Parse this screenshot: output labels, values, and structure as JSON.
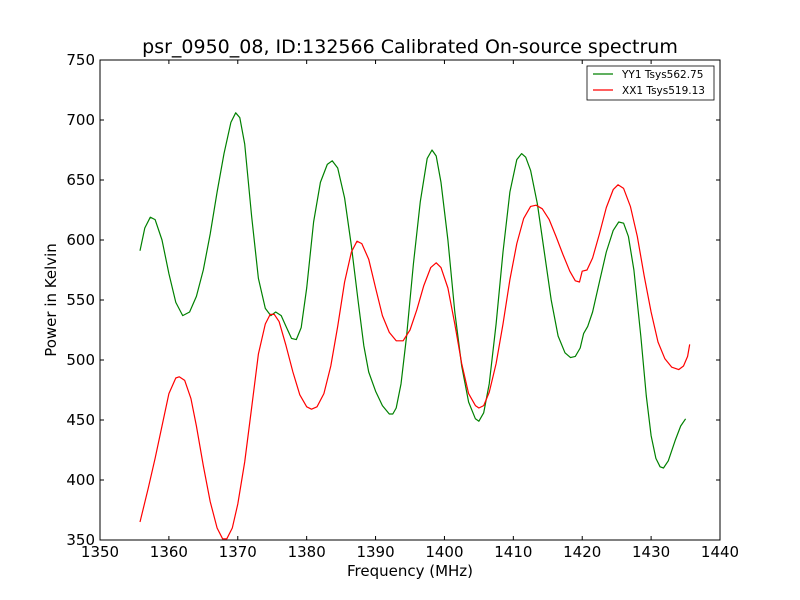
{
  "chart_data": {
    "type": "line",
    "title": "psr_0950_08, ID:132566 Calibrated On-source spectrum",
    "xlabel": "Frequency (MHz)",
    "ylabel": "Power in Kelvin",
    "xlim": [
      1350,
      1440
    ],
    "ylim": [
      350,
      750
    ],
    "xticks": [
      1350,
      1360,
      1370,
      1380,
      1390,
      1400,
      1410,
      1420,
      1430,
      1440
    ],
    "yticks": [
      350,
      400,
      450,
      500,
      550,
      600,
      650,
      700,
      750
    ],
    "grid": false,
    "legend_position": "top-right",
    "series": [
      {
        "name": "YY1 Tsys562.75",
        "color": "#008000",
        "points": [
          [
            1355.8,
            591
          ],
          [
            1356.5,
            610
          ],
          [
            1357.3,
            619
          ],
          [
            1358,
            617
          ],
          [
            1359,
            600
          ],
          [
            1360,
            572
          ],
          [
            1361,
            548
          ],
          [
            1362,
            537
          ],
          [
            1363,
            540
          ],
          [
            1364,
            553
          ],
          [
            1365,
            575
          ],
          [
            1366,
            605
          ],
          [
            1367,
            640
          ],
          [
            1368,
            672
          ],
          [
            1369,
            698
          ],
          [
            1369.7,
            706
          ],
          [
            1370.3,
            702
          ],
          [
            1371,
            680
          ],
          [
            1372,
            620
          ],
          [
            1373,
            568
          ],
          [
            1374,
            543
          ],
          [
            1374.8,
            537
          ],
          [
            1375.5,
            540
          ],
          [
            1376.3,
            537
          ],
          [
            1377,
            528
          ],
          [
            1377.8,
            518
          ],
          [
            1378.5,
            517
          ],
          [
            1379.2,
            527
          ],
          [
            1380,
            560
          ],
          [
            1381,
            615
          ],
          [
            1382,
            648
          ],
          [
            1383,
            663
          ],
          [
            1383.7,
            666
          ],
          [
            1384.5,
            660
          ],
          [
            1385.5,
            635
          ],
          [
            1386.5,
            595
          ],
          [
            1387.5,
            548
          ],
          [
            1388.3,
            512
          ],
          [
            1389,
            490
          ],
          [
            1390,
            474
          ],
          [
            1391,
            462
          ],
          [
            1392,
            455
          ],
          [
            1392.5,
            455
          ],
          [
            1393,
            460
          ],
          [
            1393.7,
            480
          ],
          [
            1394.5,
            520
          ],
          [
            1395.5,
            580
          ],
          [
            1396.5,
            632
          ],
          [
            1397.5,
            668
          ],
          [
            1398.2,
            675
          ],
          [
            1398.8,
            670
          ],
          [
            1399.5,
            648
          ],
          [
            1400.5,
            600
          ],
          [
            1401.5,
            540
          ],
          [
            1402.5,
            495
          ],
          [
            1403.5,
            465
          ],
          [
            1404.5,
            451
          ],
          [
            1405,
            449
          ],
          [
            1405.7,
            456
          ],
          [
            1406.5,
            480
          ],
          [
            1407.5,
            530
          ],
          [
            1408.5,
            590
          ],
          [
            1409.5,
            640
          ],
          [
            1410.5,
            667
          ],
          [
            1411.2,
            672
          ],
          [
            1411.8,
            669
          ],
          [
            1412.5,
            658
          ],
          [
            1413.5,
            630
          ],
          [
            1414.5,
            590
          ],
          [
            1415.5,
            550
          ],
          [
            1416.5,
            520
          ],
          [
            1417.5,
            506
          ],
          [
            1418.3,
            502
          ],
          [
            1419,
            503
          ],
          [
            1419.7,
            510
          ],
          [
            1420.2,
            522
          ],
          [
            1420.8,
            528
          ],
          [
            1421.5,
            540
          ],
          [
            1422.5,
            565
          ],
          [
            1423.5,
            590
          ],
          [
            1424.5,
            608
          ],
          [
            1425.3,
            615
          ],
          [
            1426,
            614
          ],
          [
            1426.7,
            603
          ],
          [
            1427.5,
            575
          ],
          [
            1428.5,
            520
          ],
          [
            1429.3,
            470
          ],
          [
            1430,
            437
          ],
          [
            1430.7,
            418
          ],
          [
            1431.3,
            411
          ],
          [
            1431.8,
            410
          ],
          [
            1432.5,
            416
          ],
          [
            1433.5,
            433
          ],
          [
            1434.3,
            445
          ],
          [
            1435,
            451
          ]
        ]
      },
      {
        "name": "XX1 Tsys519.13",
        "color": "#ff0000",
        "points": [
          [
            1355.8,
            365
          ],
          [
            1357,
            393
          ],
          [
            1358,
            418
          ],
          [
            1359,
            445
          ],
          [
            1360,
            472
          ],
          [
            1361,
            485
          ],
          [
            1361.5,
            486
          ],
          [
            1362.3,
            483
          ],
          [
            1363.2,
            468
          ],
          [
            1364,
            445
          ],
          [
            1365,
            412
          ],
          [
            1366,
            382
          ],
          [
            1367,
            360
          ],
          [
            1367.8,
            351
          ],
          [
            1368.4,
            351
          ],
          [
            1369.2,
            360
          ],
          [
            1370,
            380
          ],
          [
            1371,
            415
          ],
          [
            1372,
            460
          ],
          [
            1373,
            505
          ],
          [
            1374,
            530
          ],
          [
            1374.7,
            538
          ],
          [
            1375.3,
            538
          ],
          [
            1376,
            532
          ],
          [
            1377,
            512
          ],
          [
            1378,
            490
          ],
          [
            1379,
            471
          ],
          [
            1380,
            461
          ],
          [
            1380.7,
            459
          ],
          [
            1381.5,
            461
          ],
          [
            1382.5,
            472
          ],
          [
            1383.5,
            495
          ],
          [
            1384.5,
            528
          ],
          [
            1385.5,
            565
          ],
          [
            1386.5,
            590
          ],
          [
            1387.3,
            599
          ],
          [
            1388,
            597
          ],
          [
            1389,
            584
          ],
          [
            1390,
            560
          ],
          [
            1391,
            537
          ],
          [
            1392,
            523
          ],
          [
            1393,
            516
          ],
          [
            1394,
            516
          ],
          [
            1395,
            525
          ],
          [
            1396,
            542
          ],
          [
            1397,
            562
          ],
          [
            1398,
            577
          ],
          [
            1398.8,
            581
          ],
          [
            1399.5,
            577
          ],
          [
            1400.5,
            560
          ],
          [
            1401.5,
            530
          ],
          [
            1402.5,
            497
          ],
          [
            1403.5,
            472
          ],
          [
            1404.5,
            462
          ],
          [
            1405,
            460
          ],
          [
            1405.7,
            462
          ],
          [
            1406.5,
            473
          ],
          [
            1407.5,
            497
          ],
          [
            1408.5,
            530
          ],
          [
            1409.5,
            567
          ],
          [
            1410.5,
            597
          ],
          [
            1411.5,
            618
          ],
          [
            1412.5,
            628
          ],
          [
            1413.3,
            629
          ],
          [
            1414.2,
            626
          ],
          [
            1415.2,
            617
          ],
          [
            1416.2,
            603
          ],
          [
            1417.2,
            588
          ],
          [
            1418.2,
            574
          ],
          [
            1419,
            566
          ],
          [
            1419.6,
            565
          ],
          [
            1420,
            574
          ],
          [
            1420.7,
            575
          ],
          [
            1421.5,
            585
          ],
          [
            1422.5,
            605
          ],
          [
            1423.5,
            627
          ],
          [
            1424.5,
            642
          ],
          [
            1425.2,
            646
          ],
          [
            1426,
            643
          ],
          [
            1427,
            628
          ],
          [
            1428,
            603
          ],
          [
            1429,
            570
          ],
          [
            1430,
            540
          ],
          [
            1431,
            515
          ],
          [
            1432,
            501
          ],
          [
            1433,
            494
          ],
          [
            1434,
            492
          ],
          [
            1434.7,
            495
          ],
          [
            1435.3,
            503
          ],
          [
            1435.6,
            513
          ]
        ]
      }
    ]
  }
}
